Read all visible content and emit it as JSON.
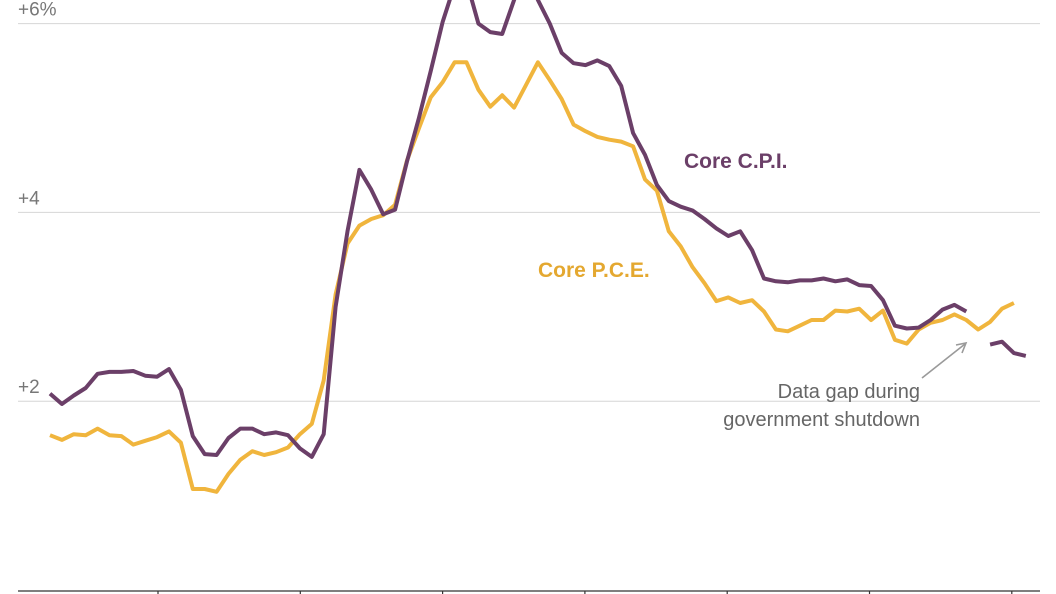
{
  "chart_data": {
    "type": "line",
    "ylim": [
      0,
      6.25
    ],
    "x_range": [
      0,
      83
    ],
    "y_ticks": [
      {
        "value": 2,
        "label": "+2"
      },
      {
        "value": 4,
        "label": "+4"
      },
      {
        "value": 6,
        "label": "+6%"
      }
    ],
    "series": [
      {
        "name": "Core C.P.I.",
        "color": "#6b3f68",
        "segments": [
          {
            "start": 0,
            "values": [
              2.08,
              1.97,
              2.06,
              2.14,
              2.29,
              2.31,
              2.31,
              2.32,
              2.27,
              2.26,
              2.34,
              2.12,
              1.63,
              1.44,
              1.43,
              1.61,
              1.71,
              1.71,
              1.65,
              1.67,
              1.64,
              1.5,
              1.41,
              1.65,
              3.0,
              3.8,
              4.45,
              4.24,
              3.98,
              4.03,
              4.54,
              5.0,
              5.5,
              6.02,
              6.41,
              6.45,
              6.0,
              5.91,
              5.89,
              6.25,
              6.6,
              6.25,
              6.0,
              5.69,
              5.58,
              5.56,
              5.61,
              5.55,
              5.34,
              4.84,
              4.61,
              4.29,
              4.12,
              4.06,
              4.02,
              3.93,
              3.83,
              3.75,
              3.8,
              3.6,
              3.3,
              3.27,
              3.26,
              3.28,
              3.28,
              3.3,
              3.27,
              3.29,
              3.23,
              3.22,
              3.07,
              2.8,
              2.77,
              2.78,
              2.86,
              2.97,
              3.02,
              2.95
            ]
          },
          {
            "start": 79,
            "values": [
              2.6,
              2.63,
              2.51,
              2.48
            ]
          }
        ]
      },
      {
        "name": "Core P.C.E.",
        "color": "#f0b53d",
        "segments": [
          {
            "start": 0,
            "values": [
              1.64,
              1.59,
              1.65,
              1.64,
              1.71,
              1.64,
              1.63,
              1.54,
              1.58,
              1.62,
              1.68,
              1.56,
              1.07,
              1.07,
              1.04,
              1.23,
              1.38,
              1.47,
              1.43,
              1.46,
              1.51,
              1.65,
              1.76,
              2.22,
              3.13,
              3.67,
              3.86,
              3.93,
              3.97,
              4.08,
              4.55,
              4.89,
              5.22,
              5.38,
              5.59,
              5.59,
              5.3,
              5.12,
              5.24,
              5.11,
              5.35,
              5.59,
              5.4,
              5.2,
              4.93,
              4.86,
              4.8,
              4.77,
              4.75,
              4.7,
              4.35,
              4.23,
              3.8,
              3.64,
              3.42,
              3.25,
              3.06,
              3.1,
              3.04,
              3.07,
              2.95,
              2.76,
              2.74,
              2.8,
              2.86,
              2.86,
              2.96,
              2.95,
              2.98,
              2.86,
              2.96,
              2.65,
              2.61,
              2.76,
              2.83,
              2.86,
              2.92,
              2.86,
              2.76,
              2.84,
              2.98,
              3.04
            ]
          }
        ]
      }
    ],
    "annotations": {
      "cpi_label": "Core C.P.I.",
      "pce_label": "Core P.C.E.",
      "gap_note_line1": "Data gap during",
      "gap_note_line2": "government shutdown"
    }
  }
}
